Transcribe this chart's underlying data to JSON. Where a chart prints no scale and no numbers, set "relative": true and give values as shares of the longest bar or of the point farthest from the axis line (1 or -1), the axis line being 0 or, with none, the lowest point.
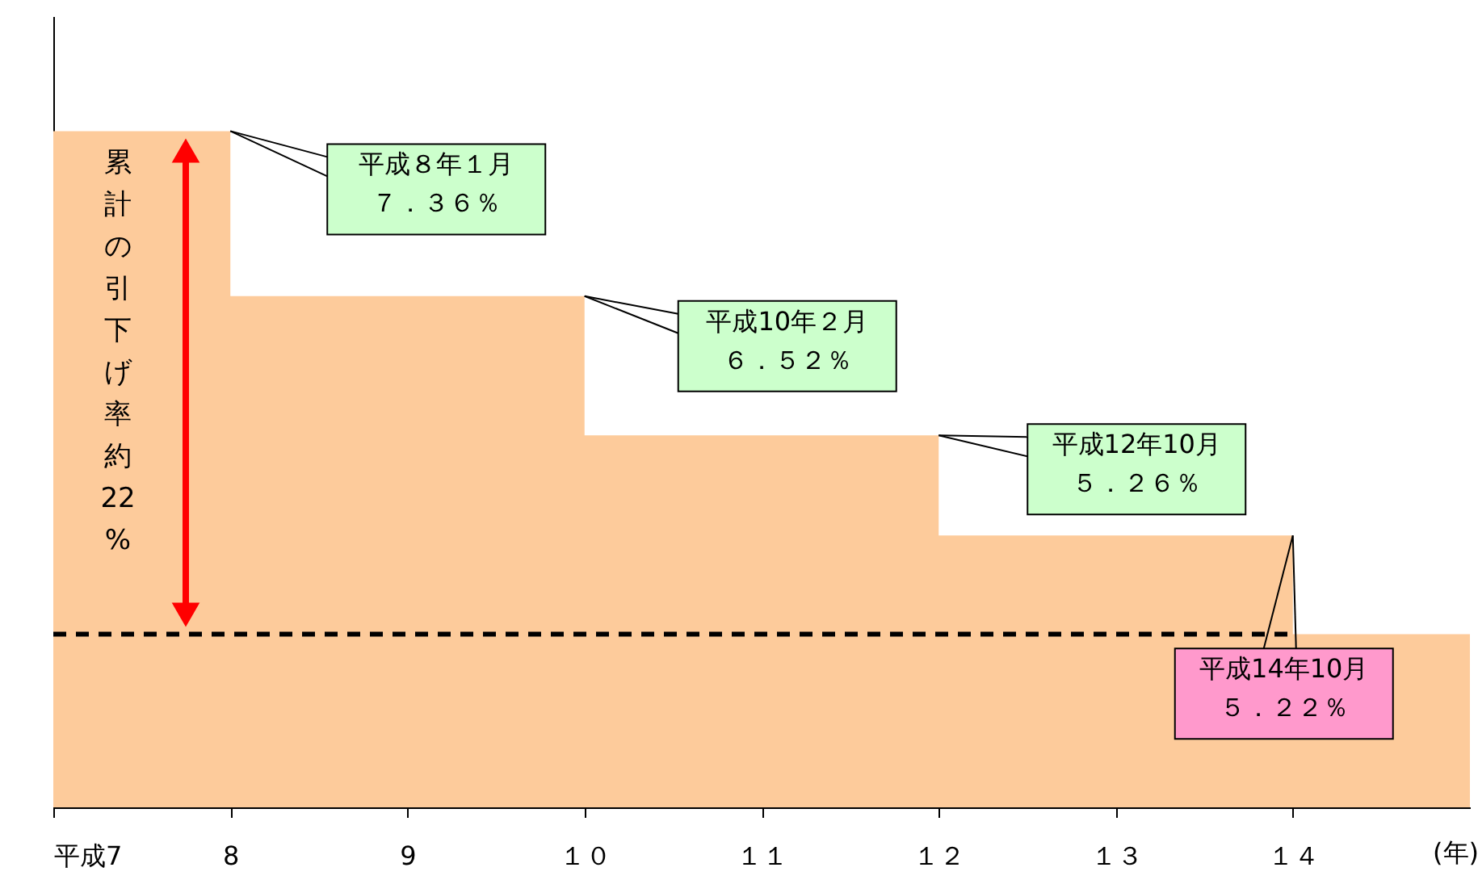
{
  "chart_data": {
    "type": "area",
    "relative": true,
    "x": [
      7,
      8,
      10,
      12,
      14,
      15
    ],
    "series": [
      {
        "color": "#fdcb9b",
        "values": [
          1,
          0.756,
          0.55,
          0.402,
          0.256,
          0.256
        ]
      }
    ],
    "xlim": [
      7,
      15
    ],
    "xticks": [
      {
        "value": 7,
        "label": "平成7"
      },
      8,
      9,
      {
        "value": 10,
        "label": "１０"
      },
      {
        "value": 11,
        "label": "１１"
      },
      {
        "value": 12,
        "label": "１２"
      },
      {
        "value": 13,
        "label": "１３"
      },
      {
        "value": 14,
        "label": "１４"
      }
    ],
    "xlabel": "(年)",
    "grid": false,
    "ref_lines": [
      {
        "axis": "y",
        "value": 0.256,
        "color": "#000000",
        "line_style": "dashed"
      }
    ],
    "annotations": [
      "累計の引下げ率約22%",
      {
        "text": "平成８年１月",
        "x": 8,
        "y": 1
      },
      "７．３６％",
      {
        "text": "平成10年２月",
        "x": 10,
        "y": 0.756
      },
      "６．５２％",
      {
        "text": "平成12年10月",
        "x": 12,
        "y": 0.55
      },
      "５．２６％",
      {
        "text": "平成14年10月",
        "x": 14,
        "y": 0.402
      },
      "５．２２％"
    ]
  }
}
